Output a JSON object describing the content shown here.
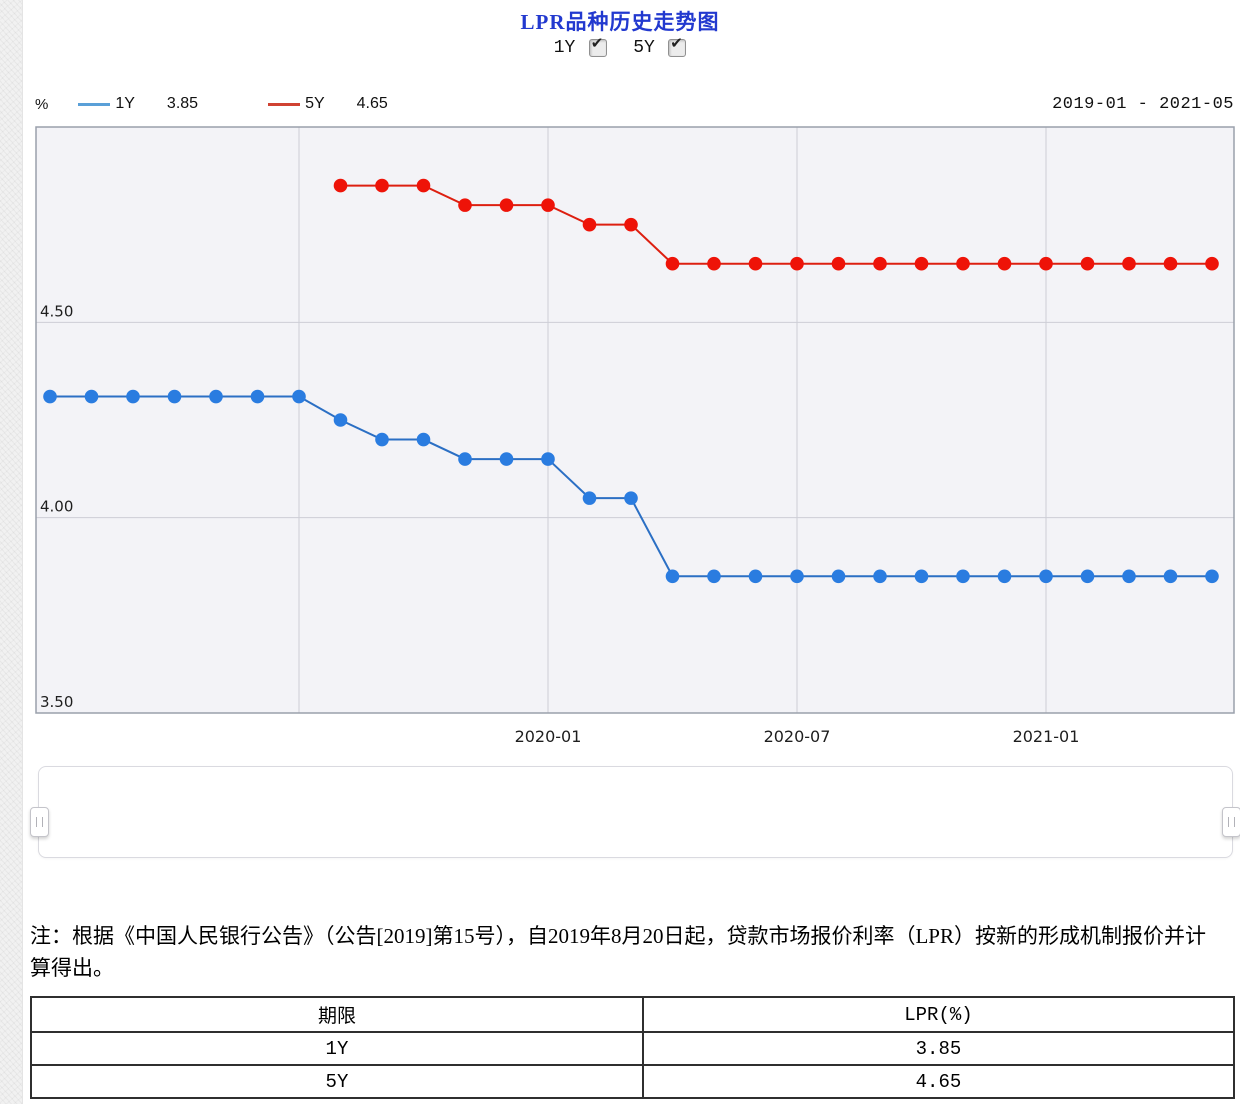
{
  "title": {
    "text": "LPR品种历史走势图",
    "color": "#2239cf"
  },
  "controls": {
    "check_glyph": "✔",
    "toggles": [
      {
        "label": "1Y",
        "checked": true
      },
      {
        "label": "5Y",
        "checked": true
      }
    ]
  },
  "legend": {
    "unit": "%",
    "items": [
      {
        "label": "1Y",
        "value": "3.85",
        "swatch_color": "#5aa0d8"
      },
      {
        "label": "5Y",
        "value": "4.65",
        "swatch_color": "#d04232"
      }
    ],
    "date_range": "2019-01 - 2021-05"
  },
  "chart_data": {
    "type": "line",
    "title": "LPR品种历史走势图",
    "x": [
      "2019-01",
      "2019-02",
      "2019-03",
      "2019-04",
      "2019-05",
      "2019-06",
      "2019-07",
      "2019-08",
      "2019-09",
      "2019-10",
      "2019-11",
      "2019-12",
      "2020-01",
      "2020-02",
      "2020-03",
      "2020-04",
      "2020-05",
      "2020-06",
      "2020-07",
      "2020-08",
      "2020-09",
      "2020-10",
      "2020-11",
      "2020-12",
      "2021-01",
      "2021-02",
      "2021-03",
      "2021-04",
      "2021-05"
    ],
    "series": [
      {
        "name": "1Y",
        "line_color": "#2b6fc4",
        "point_color": "#2a7ce0",
        "values": [
          4.31,
          4.31,
          4.31,
          4.31,
          4.31,
          4.31,
          4.31,
          4.25,
          4.2,
          4.2,
          4.15,
          4.15,
          4.15,
          4.05,
          4.05,
          3.85,
          3.85,
          3.85,
          3.85,
          3.85,
          3.85,
          3.85,
          3.85,
          3.85,
          3.85,
          3.85,
          3.85,
          3.85,
          3.85
        ]
      },
      {
        "name": "5Y",
        "line_color": "#dd1f10",
        "point_color": "#ee1308",
        "values": [
          null,
          null,
          null,
          null,
          null,
          null,
          null,
          4.85,
          4.85,
          4.85,
          4.8,
          4.8,
          4.8,
          4.75,
          4.75,
          4.65,
          4.65,
          4.65,
          4.65,
          4.65,
          4.65,
          4.65,
          4.65,
          4.65,
          4.65,
          4.65,
          4.65,
          4.65,
          4.65
        ]
      }
    ],
    "ylim": [
      3.5,
      5.0
    ],
    "yticks": [
      3.5,
      4.0,
      4.5
    ],
    "y_unit": "%",
    "grid": true,
    "grid_xticks": [
      "2019-07",
      "2020-01",
      "2020-07",
      "2021-01"
    ],
    "xtick_labels": [
      "2020-01",
      "2020-07",
      "2021-01"
    ],
    "legend_position": "top",
    "colors": {
      "plot_bg": "#f3f3f7",
      "plot_border": "#9aa0ab",
      "grid": "#cdced6",
      "tick_text": "#1e1e1e"
    }
  },
  "note": "注：根据《中国人民银行公告》（公告[2019]第15号），自2019年8月20日起，贷款市场报价利率（LPR）按新的形成机制报价并计算得出。",
  "table": {
    "headers": [
      "期限",
      "LPR(%)"
    ],
    "rows": [
      [
        "1Y",
        "3.85"
      ],
      [
        "5Y",
        "4.65"
      ]
    ]
  }
}
